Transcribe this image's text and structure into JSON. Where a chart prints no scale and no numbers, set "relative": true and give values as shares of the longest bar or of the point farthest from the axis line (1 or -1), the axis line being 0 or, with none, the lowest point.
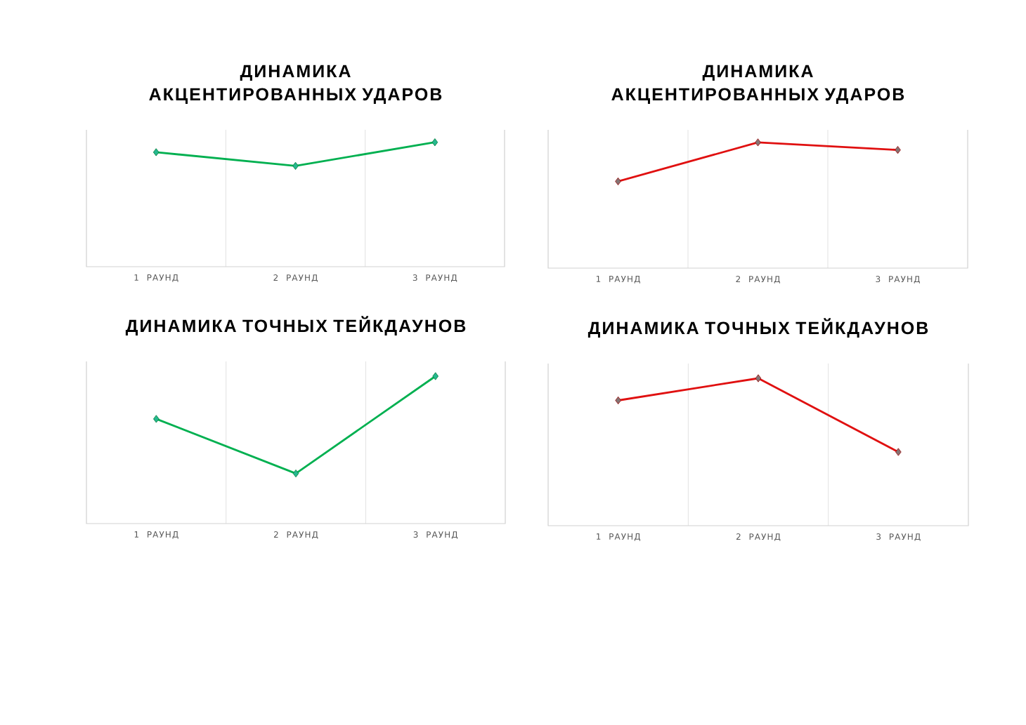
{
  "chart_data": [
    {
      "type": "line",
      "title": "ДИНАМИКА АКЦЕНТИРОВАННЫХ УДАРОВ",
      "categories": [
        "1 РАУНД",
        "2 РАУНД",
        "3 РАУНД"
      ],
      "relative": true,
      "grid": "x",
      "marker": "diamond",
      "line_style": "solid",
      "series": [
        {
          "color": "#00b050",
          "values": [
            0.92,
            0.81,
            1
          ]
        }
      ]
    },
    {
      "type": "line",
      "title": "ДИНАМИКА АКЦЕНТИРОВАННЫХ УДАРОВ",
      "categories": [
        "1 РАУНД",
        "2 РАУНД",
        "3 РАУНД"
      ],
      "relative": true,
      "grid": "x",
      "marker": "diamond",
      "line_style": "solid",
      "series": [
        {
          "color": "#e01010",
          "values": [
            0.69,
            1,
            0.94
          ]
        }
      ]
    },
    {
      "type": "line",
      "title": "ДИНАМИКА ТОЧНЫХ ТЕЙКДАУНОВ",
      "categories": [
        "1 РАУНД",
        "2 РАУНД",
        "3 РАУНД"
      ],
      "relative": true,
      "grid": "x",
      "marker": "diamond",
      "line_style": "solid",
      "series": [
        {
          "color": "#00b050",
          "values": [
            0.71,
            0.34,
            1
          ]
        }
      ]
    },
    {
      "type": "line",
      "title": "ДИНАМИКА ТОЧНЫХ ТЕЙКДАУНОВ",
      "categories": [
        "1 РАУНД",
        "2 РАУНД",
        "3 РАУНД"
      ],
      "relative": true,
      "grid": "x",
      "marker": "diamond",
      "line_style": "solid",
      "series": [
        {
          "color": "#e01010",
          "values": [
            0.85,
            1,
            0.5
          ]
        }
      ]
    }
  ]
}
